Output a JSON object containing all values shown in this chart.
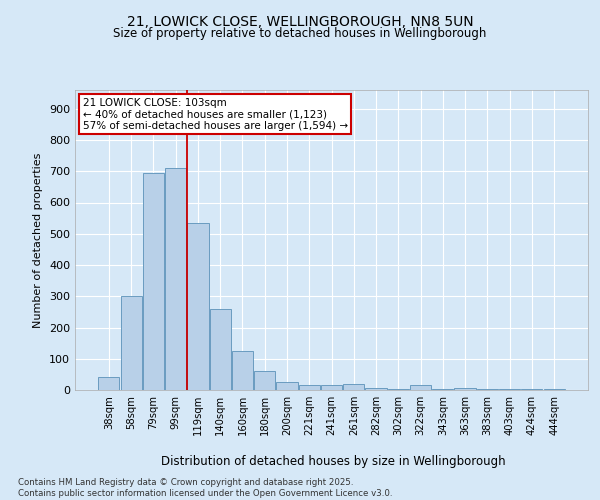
{
  "title1": "21, LOWICK CLOSE, WELLINGBOROUGH, NN8 5UN",
  "title2": "Size of property relative to detached houses in Wellingborough",
  "xlabel": "Distribution of detached houses by size in Wellingborough",
  "ylabel": "Number of detached properties",
  "categories": [
    "38sqm",
    "58sqm",
    "79sqm",
    "99sqm",
    "119sqm",
    "140sqm",
    "160sqm",
    "180sqm",
    "200sqm",
    "221sqm",
    "241sqm",
    "261sqm",
    "282sqm",
    "302sqm",
    "322sqm",
    "343sqm",
    "363sqm",
    "383sqm",
    "403sqm",
    "424sqm",
    "444sqm"
  ],
  "values": [
    42,
    300,
    695,
    710,
    535,
    260,
    125,
    60,
    25,
    15,
    15,
    20,
    7,
    4,
    15,
    4,
    7,
    4,
    3,
    4,
    2
  ],
  "bar_color": "#b8d0e8",
  "bar_edge_color": "#6a9cc0",
  "background_color": "#d6e8f7",
  "plot_bg_color": "#d6e8f7",
  "grid_color": "#ffffff",
  "annotation_title": "21 LOWICK CLOSE: 103sqm",
  "annotation_line1": "← 40% of detached houses are smaller (1,123)",
  "annotation_line2": "57% of semi-detached houses are larger (1,594) →",
  "annotation_box_color": "#ffffff",
  "annotation_border_color": "#cc0000",
  "red_line_color": "#cc0000",
  "footer": "Contains HM Land Registry data © Crown copyright and database right 2025.\nContains public sector information licensed under the Open Government Licence v3.0.",
  "ylim": [
    0,
    960
  ],
  "yticks": [
    0,
    100,
    200,
    300,
    400,
    500,
    600,
    700,
    800,
    900
  ]
}
